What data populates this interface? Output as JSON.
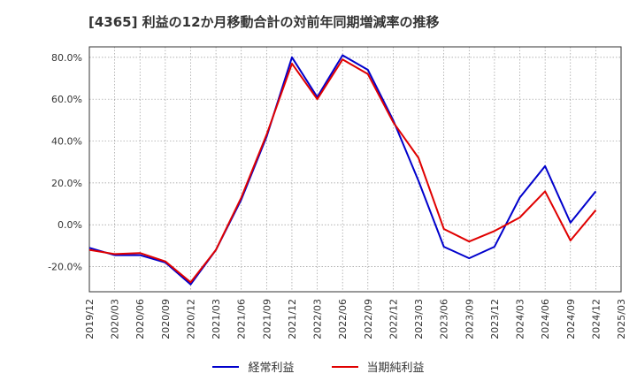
{
  "chart_data": {
    "type": "line",
    "title": "[4365]  利益の12か月移動合計の対前年同期増減率の推移",
    "xlabel": "",
    "ylabel": "",
    "ylim": [
      -32,
      85
    ],
    "yticks": [
      80,
      60,
      40,
      20,
      0,
      -20
    ],
    "ytick_labels": [
      "80.0%",
      "60.0%",
      "40.0%",
      "20.0%",
      "0.0%",
      "-20.0%"
    ],
    "categories": [
      "2019/12",
      "2020/03",
      "2020/06",
      "2020/09",
      "2020/12",
      "2021/03",
      "2021/06",
      "2021/09",
      "2021/12",
      "2022/03",
      "2022/06",
      "2022/09",
      "2022/12",
      "2023/03",
      "2023/06",
      "2023/09",
      "2023/12",
      "2024/03",
      "2024/06",
      "2024/09",
      "2024/12",
      "2025/03"
    ],
    "grid": true,
    "legend_position": "bottom",
    "series": [
      {
        "name": "経常利益",
        "color": "#0000cc",
        "values": [
          -11,
          -14.5,
          -14.5,
          -18,
          -28.5,
          -12,
          12,
          42,
          80,
          61,
          81,
          74,
          50,
          21,
          -10.5,
          -16,
          -10.5,
          13,
          28,
          1,
          16,
          null
        ]
      },
      {
        "name": "当期純利益",
        "color": "#e00000",
        "values": [
          -12,
          -14,
          -13.5,
          -17.5,
          -27.5,
          -12,
          13,
          43,
          77,
          60,
          79,
          72,
          49,
          32,
          -2,
          -8,
          -3,
          3.5,
          16,
          -7.5,
          7,
          null
        ]
      }
    ]
  }
}
